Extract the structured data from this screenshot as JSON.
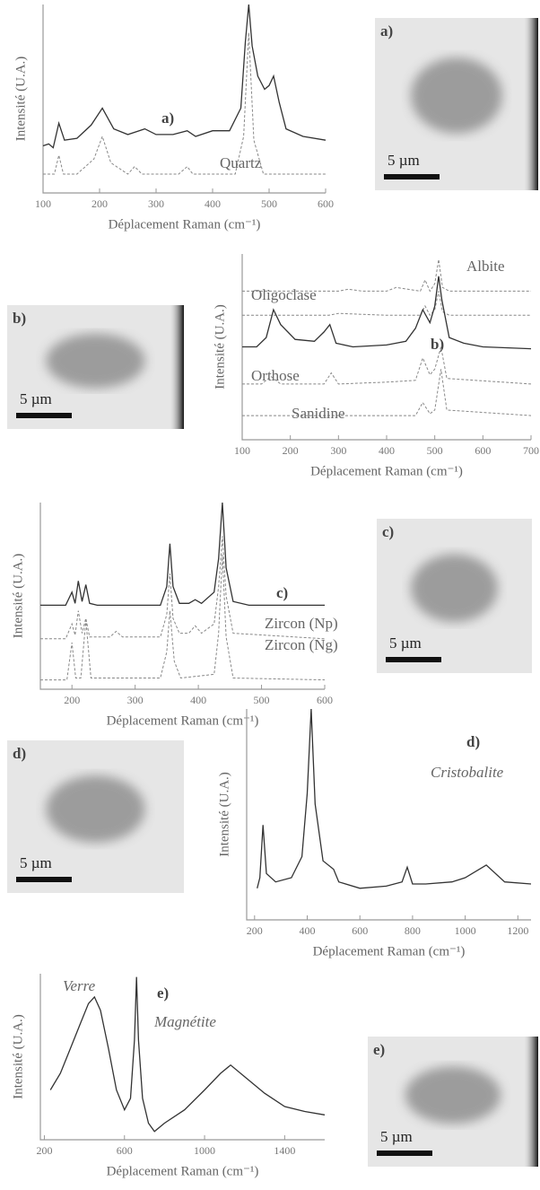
{
  "chart_data": [
    {
      "type": "line",
      "x_label": "Déplacement Raman (cm⁻¹)",
      "y_label": "Intensité (U.A.)",
      "xlim": [
        100,
        600
      ],
      "xticks": [
        100,
        200,
        300,
        400,
        500,
        600
      ],
      "ylim": [
        0,
        100
      ],
      "series": [
        {
          "name": "a)",
          "color": "#333333",
          "dashed": false,
          "x": [
            100,
            110,
            118,
            128,
            138,
            160,
            185,
            205,
            225,
            250,
            270,
            280,
            300,
            330,
            355,
            370,
            400,
            430,
            450,
            458,
            464,
            470,
            480,
            492,
            500,
            508,
            518,
            530,
            560,
            600
          ],
          "values": [
            25,
            26,
            24,
            37,
            28,
            29,
            36,
            45,
            34,
            31,
            33,
            34,
            31,
            31,
            33,
            30,
            33,
            33,
            45,
            80,
            100,
            78,
            62,
            55,
            57,
            62,
            48,
            34,
            30,
            28
          ]
        },
        {
          "name": "Quartz",
          "color": "#888888",
          "dashed": true,
          "x": [
            100,
            120,
            128,
            136,
            160,
            190,
            205,
            220,
            250,
            262,
            275,
            340,
            355,
            365,
            440,
            455,
            464,
            473,
            490,
            600
          ],
          "values": [
            10,
            10,
            20,
            10,
            10,
            18,
            30,
            16,
            10,
            14,
            10,
            10,
            14,
            10,
            10,
            30,
            85,
            28,
            10,
            10
          ]
        }
      ],
      "annotations": []
    },
    {
      "type": "line",
      "x_label": "Déplacement Raman (cm⁻¹)",
      "y_label": "Intensité (U.A.)",
      "xlim": [
        100,
        700
      ],
      "xticks": [
        100,
        200,
        300,
        400,
        500,
        600,
        700
      ],
      "ylim": [
        0,
        100
      ],
      "series": [
        {
          "name": "Albite",
          "color": "#888888",
          "dashed": true,
          "x": [
            100,
            300,
            320,
            350,
            400,
            420,
            470,
            480,
            490,
            500,
            508,
            516,
            530,
            700
          ],
          "values": [
            80,
            80,
            81,
            80,
            80,
            82,
            80,
            86,
            80,
            84,
            97,
            82,
            80,
            80
          ]
        },
        {
          "name": "Oligoclase",
          "color": "#888888",
          "dashed": true,
          "x": [
            100,
            280,
            300,
            400,
            470,
            480,
            490,
            500,
            508,
            516,
            530,
            700
          ],
          "values": [
            67,
            67,
            68,
            67,
            67,
            72,
            67,
            70,
            80,
            69,
            67,
            67
          ]
        },
        {
          "name": "b)",
          "color": "#333333",
          "dashed": false,
          "x": [
            100,
            130,
            150,
            165,
            180,
            210,
            250,
            270,
            282,
            295,
            330,
            400,
            440,
            460,
            475,
            490,
            500,
            508,
            515,
            530,
            560,
            600,
            700
          ],
          "values": [
            50,
            50,
            55,
            70,
            62,
            54,
            53,
            58,
            62,
            52,
            50,
            51,
            53,
            60,
            70,
            63,
            72,
            88,
            75,
            55,
            52,
            50,
            49
          ]
        },
        {
          "name": "Orthose",
          "color": "#888888",
          "dashed": true,
          "x": [
            100,
            140,
            160,
            180,
            270,
            285,
            300,
            400,
            460,
            475,
            490,
            500,
            513,
            525,
            700
          ],
          "values": [
            30,
            30,
            34,
            30,
            30,
            36,
            30,
            31,
            32,
            44,
            35,
            38,
            50,
            33,
            30
          ]
        },
        {
          "name": "Sanidine",
          "color": "#888888",
          "dashed": true,
          "x": [
            100,
            460,
            475,
            490,
            500,
            513,
            525,
            700
          ],
          "values": [
            13,
            13,
            20,
            14,
            16,
            38,
            16,
            13
          ]
        }
      ],
      "annotations": []
    },
    {
      "type": "line",
      "x_label": "Déplacement Raman (cm⁻¹)",
      "y_label": "Intensité (U.A.)",
      "xlim": [
        150,
        600
      ],
      "xticks": [
        200,
        300,
        400,
        500,
        600
      ],
      "ylim": [
        0,
        100
      ],
      "series": [
        {
          "name": "c)",
          "color": "#333333",
          "dashed": false,
          "x": [
            150,
            190,
            200,
            205,
            210,
            216,
            222,
            228,
            240,
            340,
            350,
            355,
            360,
            370,
            385,
            395,
            405,
            425,
            432,
            438,
            444,
            455,
            480,
            600
          ],
          "values": [
            45,
            45,
            52,
            46,
            58,
            47,
            56,
            46,
            45,
            45,
            55,
            78,
            55,
            46,
            46,
            48,
            46,
            52,
            70,
            100,
            65,
            47,
            45,
            45
          ]
        },
        {
          "name": "Zircon (Np)",
          "color": "#888888",
          "dashed": true,
          "x": [
            150,
            190,
            200,
            205,
            210,
            216,
            222,
            228,
            260,
            270,
            280,
            340,
            350,
            355,
            360,
            370,
            385,
            395,
            405,
            425,
            432,
            438,
            444,
            455,
            600
          ],
          "values": [
            27,
            27,
            35,
            29,
            42,
            30,
            38,
            28,
            28,
            31,
            28,
            28,
            40,
            62,
            38,
            30,
            30,
            34,
            30,
            35,
            55,
            82,
            50,
            30,
            27
          ]
        },
        {
          "name": "Zircon (Ng)",
          "color": "#888888",
          "dashed": true,
          "x": [
            150,
            192,
            200,
            206,
            214,
            222,
            230,
            340,
            350,
            355,
            362,
            372,
            425,
            432,
            438,
            444,
            455,
            600
          ],
          "values": [
            5,
            5,
            25,
            6,
            6,
            37,
            6,
            6,
            20,
            42,
            15,
            6,
            8,
            30,
            72,
            28,
            6,
            5
          ]
        }
      ],
      "annotations": []
    },
    {
      "type": "line",
      "x_label": "Déplacement Raman (cm⁻¹)",
      "y_label": "Intensité (U.A.)",
      "xlim": [
        170,
        1250
      ],
      "xticks": [
        200,
        400,
        600,
        800,
        1000,
        1200
      ],
      "ylim": [
        0,
        100
      ],
      "series": [
        {
          "name": "d)",
          "color": "#333333",
          "dashed": false,
          "x": [
            210,
            220,
            232,
            245,
            280,
            340,
            380,
            400,
            415,
            430,
            460,
            500,
            520,
            600,
            700,
            760,
            780,
            800,
            850,
            950,
            1000,
            1080,
            1150,
            1250
          ],
          "values": [
            15,
            20,
            45,
            22,
            18,
            20,
            30,
            60,
            100,
            55,
            28,
            24,
            18,
            15,
            16,
            18,
            25,
            17,
            17,
            18,
            20,
            26,
            18,
            17
          ]
        }
      ],
      "annotations": [
        "Cristobalite"
      ]
    },
    {
      "type": "line",
      "x_label": "Déplacement Raman (cm⁻¹)",
      "y_label": "Intensité (U.A.)",
      "xlim": [
        180,
        1600
      ],
      "xticks": [
        200,
        600,
        1000,
        1400
      ],
      "ylim": [
        0,
        100
      ],
      "series": [
        {
          "name": "e)",
          "color": "#333333",
          "dashed": false,
          "x": [
            230,
            280,
            330,
            380,
            420,
            450,
            480,
            520,
            560,
            600,
            630,
            650,
            660,
            670,
            690,
            720,
            750,
            800,
            900,
            1000,
            1080,
            1130,
            1200,
            1300,
            1400,
            1500,
            1600
          ],
          "values": [
            30,
            40,
            55,
            70,
            82,
            86,
            78,
            55,
            30,
            18,
            25,
            60,
            98,
            60,
            25,
            10,
            5,
            10,
            18,
            30,
            40,
            45,
            38,
            28,
            20,
            17,
            15
          ]
        }
      ],
      "annotations": [
        "Verre",
        "Magnétite"
      ]
    }
  ],
  "images": [
    {
      "label": "a)",
      "scale": "5 µm"
    },
    {
      "label": "b)",
      "scale": "5 µm"
    },
    {
      "label": "c)",
      "scale": "5 µm"
    },
    {
      "label": "d)",
      "scale": "5 µm"
    },
    {
      "label": "e)",
      "scale": "5 µm"
    }
  ]
}
